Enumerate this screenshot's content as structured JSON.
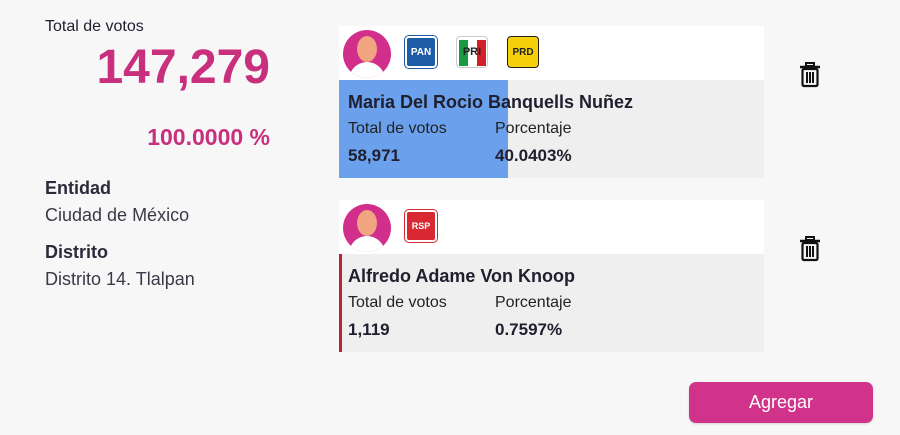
{
  "summary": {
    "total_label": "Total de votos",
    "total_votes": "147,279",
    "total_percent": "100.0000 %",
    "entity_label": "Entidad",
    "entity_value": "Ciudad de México",
    "district_label": "Distrito",
    "district_value": "Distrito 14. Tlalpan"
  },
  "candidates": [
    {
      "name": "Maria Del Rocio Banquells Nuñez",
      "votes_label": "Total de votos",
      "votes": "58,971",
      "percent_label": "Porcentaje",
      "percent": "40.0403%",
      "parties": [
        "PAN",
        "PRI",
        "PRD"
      ],
      "avatar_icon": "person-avatar-icon",
      "remove_icon": "trash-icon"
    },
    {
      "name": "Alfredo Adame Von Knoop",
      "votes_label": "Total de votos",
      "votes": "1,119",
      "percent_label": "Porcentaje",
      "percent": "0.7597%",
      "parties": [
        "RSP"
      ],
      "avatar_icon": "person-avatar-icon",
      "remove_icon": "trash-icon"
    }
  ],
  "actions": {
    "add_label": "Agregar"
  },
  "colors": {
    "accent": "#c8307e",
    "button": "#d2338a",
    "highlight": "#6aa0ec",
    "avatar": "#d22e8c"
  }
}
